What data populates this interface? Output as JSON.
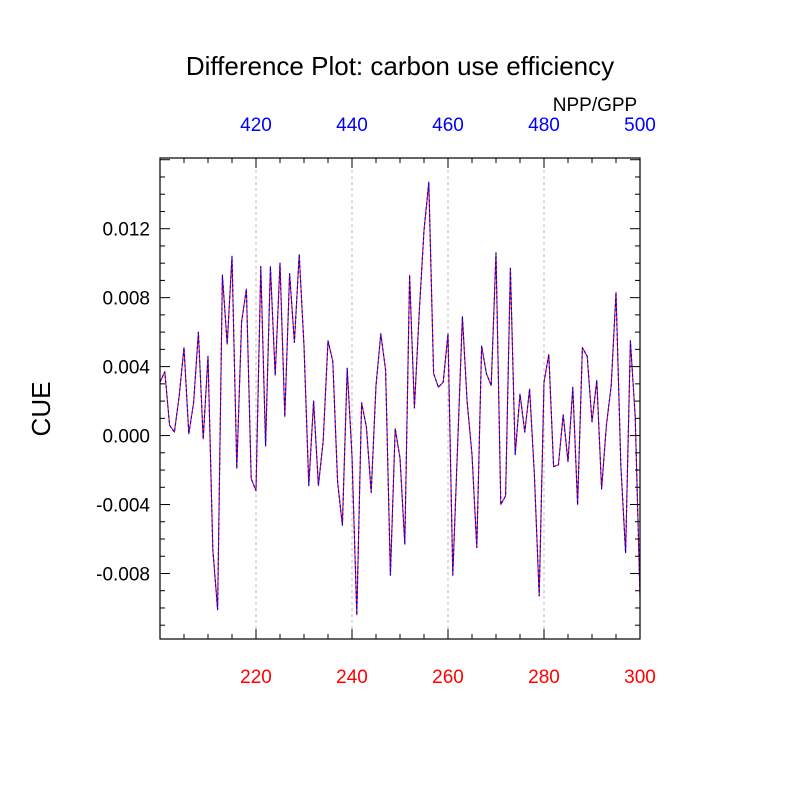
{
  "chart_data": {
    "type": "line",
    "title": "Difference Plot: carbon use efficiency",
    "ylabel": "CUE",
    "top_axis_label": "NPP/GPP",
    "xlim": [
      200,
      300
    ],
    "top_xlim": [
      400,
      500
    ],
    "ylim": [
      -0.0118,
      0.0161
    ],
    "bottom_ticks": [
      "220",
      "240",
      "260",
      "280",
      "300"
    ],
    "top_ticks": [
      "420",
      "440",
      "460",
      "480",
      "500"
    ],
    "y_ticks": [
      "0.012",
      "0.008",
      "0.004",
      "0.000",
      "-0.004",
      "-0.008"
    ],
    "grid": "vertical dashed at major x ticks",
    "colors": {
      "bottom_axis": "#ff0000",
      "top_axis": "#0000ff",
      "series_a": "#ff0000",
      "series_b": "#0000ff",
      "frame": "#000000",
      "grid": "#bbbbbb"
    },
    "series": [
      {
        "name": "NPP/GPP difference",
        "x": [
          200,
          201,
          202,
          203,
          204,
          205,
          206,
          207,
          208,
          209,
          210,
          211,
          212,
          213,
          214,
          215,
          216,
          217,
          218,
          219,
          220,
          221,
          222,
          223,
          224,
          225,
          226,
          227,
          228,
          229,
          230,
          231,
          232,
          233,
          234,
          235,
          236,
          237,
          238,
          239,
          240,
          241,
          242,
          243,
          244,
          245,
          246,
          247,
          248,
          249,
          250,
          251,
          252,
          253,
          254,
          255,
          256,
          257,
          258,
          259,
          260,
          261,
          262,
          263,
          264,
          265,
          266,
          267,
          268,
          269,
          270,
          271,
          272,
          273,
          274,
          275,
          276,
          277,
          278,
          279,
          280,
          281,
          282,
          283,
          284,
          285,
          286,
          287,
          288,
          289,
          290,
          291,
          292,
          293,
          294,
          295,
          296,
          297,
          298,
          299,
          300
        ],
        "y": [
          0.0031,
          0.0037,
          0.0006,
          0.0002,
          0.0023,
          0.0051,
          0.0001,
          0.0019,
          0.006,
          -0.0002,
          0.0046,
          -0.0066,
          -0.0101,
          0.0093,
          0.0053,
          0.0104,
          -0.0019,
          0.0066,
          0.0085,
          -0.0025,
          -0.0032,
          0.0098,
          -0.0006,
          0.0098,
          0.0035,
          0.01,
          0.0011,
          0.0094,
          0.0054,
          0.0105,
          0.0052,
          -0.0029,
          0.002,
          -0.0029,
          -0.0003,
          0.0055,
          0.0043,
          -0.0027,
          -0.0052,
          0.0039,
          -0.0012,
          -0.0104,
          0.0019,
          0.0005,
          -0.0033,
          0.0029,
          0.0059,
          0.0038,
          -0.0081,
          0.0004,
          -0.0013,
          -0.0063,
          0.0093,
          0.0016,
          0.0071,
          0.0119,
          0.0147,
          0.0036,
          0.0028,
          0.0031,
          0.0059,
          -0.0081,
          -0.0006,
          0.0069,
          0.0019,
          -0.0011,
          -0.0065,
          0.0052,
          0.0036,
          0.0029,
          0.0106,
          -0.004,
          -0.0035,
          0.0097,
          -0.0011,
          0.0024,
          0.0002,
          0.0027,
          -0.0023,
          -0.0093,
          0.0031,
          0.0047,
          -0.0018,
          -0.0017,
          0.0012,
          -0.0015,
          0.0028,
          -0.004,
          0.0051,
          0.0046,
          0.0008,
          0.0032,
          -0.0031,
          0.0006,
          0.0029,
          0.0083,
          -0.0017,
          -0.0068,
          0.0055,
          0.0011,
          -0.0093
        ]
      }
    ]
  }
}
